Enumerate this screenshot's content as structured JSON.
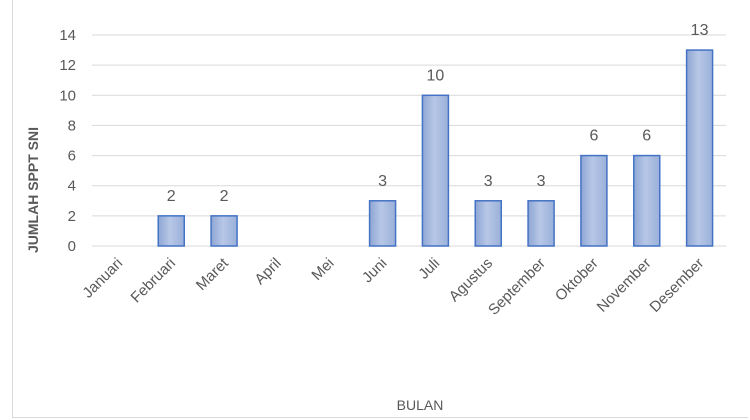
{
  "chart_data": {
    "type": "bar",
    "categories": [
      "Januari",
      "Februari",
      "Maret",
      "April",
      "Mei",
      "Juni",
      "Juli",
      "Agustus",
      "September",
      "Oktober",
      "November",
      "Desember"
    ],
    "values": [
      0,
      2,
      2,
      0,
      0,
      3,
      10,
      3,
      3,
      6,
      6,
      13
    ],
    "data_labels": [
      "",
      "2",
      "2",
      "",
      "",
      "3",
      "10",
      "3",
      "3",
      "6",
      "6",
      "13"
    ],
    "yticks": [
      "0",
      "2",
      "4",
      "6",
      "8",
      "10",
      "12",
      "14"
    ],
    "ylim": [
      0,
      14
    ],
    "xlabel": "BULAN",
    "ylabel": "JUMLAH SPPT SNI",
    "grid": true,
    "colors": {
      "bar_fill": "#a6b9dc",
      "bar_stroke": "#4472c4",
      "text": "#595959",
      "grid": "#d9d9d9"
    }
  }
}
